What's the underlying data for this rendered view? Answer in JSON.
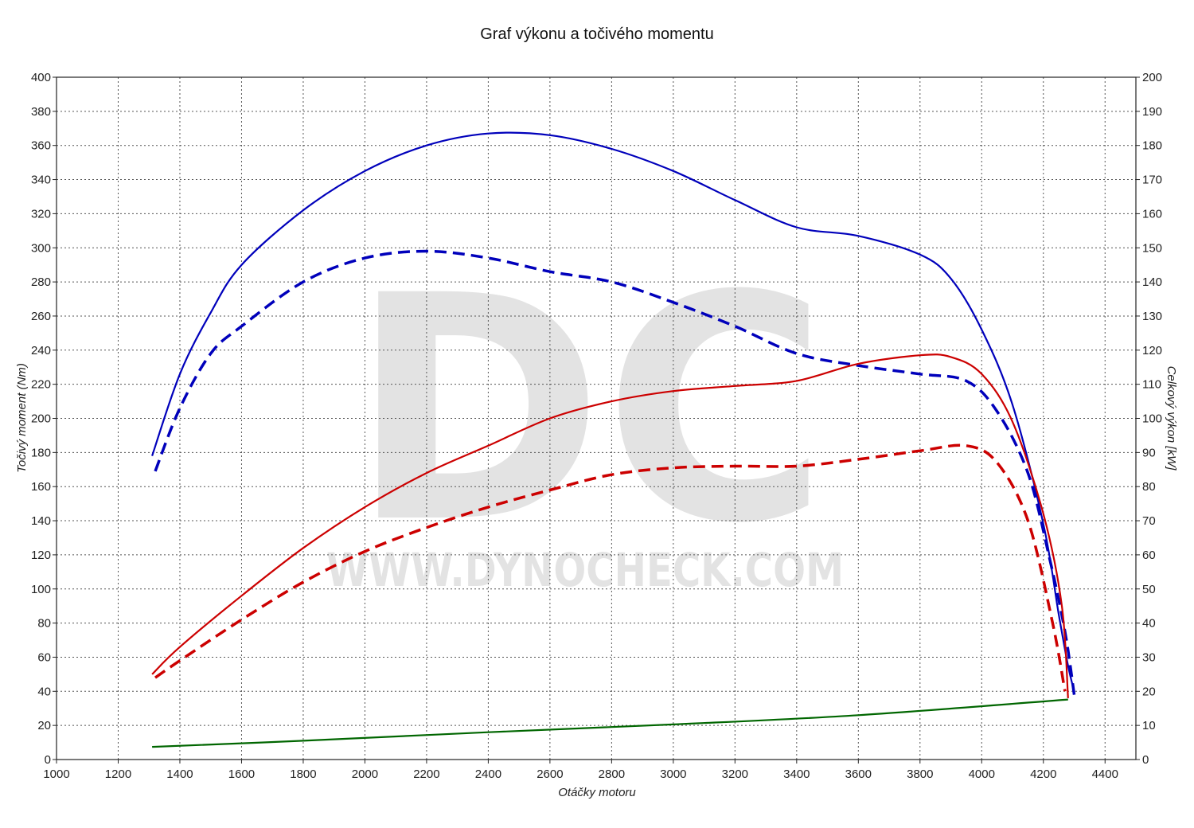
{
  "chart_data": {
    "type": "line",
    "title": "Graf výkonu a točivého momentu",
    "xlabel": "Otáčky motoru",
    "ylabel_left": "Točivý moment (Nm)",
    "ylabel_right": "Celkový výkon [kW]",
    "xlim": [
      1000,
      4500
    ],
    "ylim_left": [
      0,
      400
    ],
    "ylim_right": [
      0,
      200
    ],
    "x_ticks": [
      1000,
      1200,
      1400,
      1600,
      1800,
      2000,
      2200,
      2400,
      2600,
      2800,
      3000,
      3200,
      3400,
      3600,
      3800,
      4000,
      4200,
      4400
    ],
    "y_ticks_left": [
      0,
      20,
      40,
      60,
      80,
      100,
      120,
      140,
      160,
      180,
      200,
      220,
      240,
      260,
      280,
      300,
      320,
      340,
      360,
      380,
      400
    ],
    "y_ticks_right": [
      0,
      10,
      20,
      30,
      40,
      50,
      60,
      70,
      80,
      90,
      100,
      110,
      120,
      130,
      140,
      150,
      160,
      170,
      180,
      190,
      200
    ],
    "grid": true,
    "watermark": {
      "logo": "DC",
      "text": "WWW.DYNOCHECK.COM"
    },
    "series": [
      {
        "axis": "left",
        "style": "solid",
        "color": "#0000bb",
        "x": [
          1310,
          1400,
          1500,
          1600,
          1800,
          2000,
          2200,
          2400,
          2600,
          2800,
          3000,
          3200,
          3400,
          3600,
          3800,
          3900,
          4000,
          4100,
          4200,
          4250,
          4280,
          4300
        ],
        "y": [
          178,
          226,
          262,
          290,
          322,
          345,
          360,
          367,
          366,
          358,
          345,
          328,
          312,
          307,
          296,
          282,
          252,
          208,
          138,
          85,
          55,
          40
        ]
      },
      {
        "axis": "left",
        "style": "dashed",
        "color": "#0000bb",
        "x": [
          1320,
          1400,
          1500,
          1600,
          1800,
          2000,
          2200,
          2400,
          2600,
          2800,
          3000,
          3200,
          3400,
          3600,
          3800,
          3950,
          4050,
          4150,
          4220,
          4270,
          4300
        ],
        "y": [
          169,
          206,
          238,
          254,
          280,
          294,
          298,
          294,
          286,
          280,
          268,
          254,
          238,
          231,
          226,
          222,
          204,
          168,
          118,
          75,
          38
        ]
      },
      {
        "axis": "right",
        "style": "solid",
        "color": "#cc0000",
        "x": [
          1310,
          1400,
          1600,
          1800,
          2000,
          2200,
          2400,
          2600,
          2800,
          3000,
          3200,
          3400,
          3600,
          3800,
          3900,
          4000,
          4100,
          4200,
          4260,
          4280
        ],
        "y": [
          25,
          33,
          48,
          62,
          74,
          84,
          92,
          100,
          105,
          108,
          109.5,
          111,
          116,
          118.5,
          118,
          113,
          99,
          72,
          45,
          18
        ]
      },
      {
        "axis": "right",
        "style": "dashed",
        "color": "#cc0000",
        "x": [
          1320,
          1400,
          1600,
          1800,
          2000,
          2200,
          2400,
          2600,
          2800,
          3000,
          3200,
          3400,
          3600,
          3800,
          3950,
          4050,
          4150,
          4230,
          4270
        ],
        "y": [
          24,
          29,
          41,
          52,
          61,
          68,
          74,
          79,
          83.5,
          85.5,
          86,
          86,
          88,
          90.5,
          92,
          87,
          70,
          40,
          20
        ]
      },
      {
        "axis": "right",
        "style": "solid",
        "color": "#006600",
        "x": [
          1310,
          1800,
          2400,
          3000,
          3600,
          4280
        ],
        "y": [
          3.7,
          5.5,
          8,
          10.3,
          13,
          17.6
        ]
      }
    ]
  }
}
